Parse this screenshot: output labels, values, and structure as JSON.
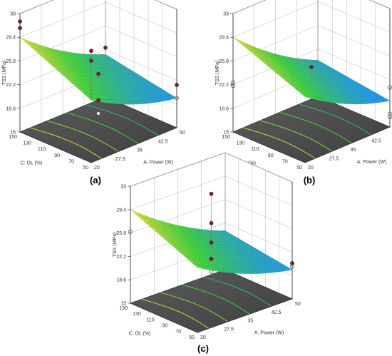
{
  "figure": {
    "panel_labels": [
      "(a)",
      "(b)",
      "(c)"
    ]
  },
  "colors": {
    "surface_low": "#1e90ff",
    "surface_mid": "#3cd43c",
    "surface_high": "#f0e030",
    "contour_floor": "#555555",
    "point_above": "#8b1a1a",
    "point_below": "#f2e6ea",
    "axis": "#333333"
  },
  "chart_data": [
    {
      "type": "surface3d",
      "panel": "(a)",
      "zlabel": "TSS (MPa)",
      "xlabel": "A: Power (W)",
      "ylabel": "C: OL (%)",
      "z_ticks": [
        "15",
        "18.6",
        "22.2",
        "25.8",
        "29.4",
        "33"
      ],
      "x_ticks": [
        "20",
        "27.5",
        "35",
        "42.5",
        "50"
      ],
      "y_ticks": [
        "50",
        "70",
        "90",
        "110",
        "130",
        "150"
      ],
      "zlim": [
        15,
        33
      ],
      "xlim": [
        20,
        50
      ],
      "ylim": [
        50,
        150
      ],
      "surface_corners": {
        "power20_ol150": 29.4,
        "power50_ol150": 21.5,
        "power20_ol50": 24.5,
        "power50_ol50": 19.5
      },
      "design_points": [
        {
          "power": 20,
          "ol": 150,
          "tss": 31.8,
          "position": "above"
        },
        {
          "power": 20,
          "ol": 150,
          "tss": 30.8,
          "position": "above"
        },
        {
          "power": 20,
          "ol": 50,
          "tss": 32.0,
          "position": "above"
        },
        {
          "power": 20,
          "ol": 50,
          "tss": 30.5,
          "position": "above"
        },
        {
          "power": 35,
          "ol": 100,
          "tss": 23.5,
          "position": "above"
        },
        {
          "power": 35,
          "ol": 100,
          "tss": 19.5,
          "position": "above"
        },
        {
          "power": 35,
          "ol": 100,
          "tss": 17.5,
          "position": "below"
        },
        {
          "power": 50,
          "ol": 150,
          "tss": 22.5,
          "position": "above"
        },
        {
          "power": 50,
          "ol": 150,
          "tss": 20.0,
          "position": "below"
        },
        {
          "power": 50,
          "ol": 50,
          "tss": 21.5,
          "position": "above"
        },
        {
          "power": 50,
          "ol": 50,
          "tss": 19.5,
          "position": "below"
        }
      ]
    },
    {
      "type": "surface3d",
      "panel": "(b)",
      "zlabel": "TSS (MPa)",
      "xlabel": "A: Power (W)",
      "ylabel": "C: OL (%)",
      "z_ticks": [
        "15",
        "18.6",
        "22.2",
        "25.8",
        "29.4",
        "33"
      ],
      "x_ticks": [
        "20",
        "27.5",
        "35",
        "42.5",
        "50"
      ],
      "y_ticks": [
        "50",
        "70",
        "90",
        "110",
        "130",
        "150"
      ],
      "zlim": [
        15,
        33
      ],
      "xlim": [
        20,
        50
      ],
      "ylim": [
        50,
        150
      ],
      "surface_corners": {
        "power20_ol150": 29.4,
        "power50_ol150": 20.5,
        "power20_ol50": 25.0,
        "power50_ol50": 19.0
      },
      "design_points": [
        {
          "power": 20,
          "ol": 150,
          "tss": 22.5,
          "position": "below"
        },
        {
          "power": 20,
          "ol": 150,
          "tss": 22.0,
          "position": "below"
        },
        {
          "power": 35,
          "ol": 100,
          "tss": 24.5,
          "position": "above"
        },
        {
          "power": 50,
          "ol": 50,
          "tss": 21.0,
          "position": "below"
        },
        {
          "power": 50,
          "ol": 50,
          "tss": 17.0,
          "position": "below"
        },
        {
          "power": 50,
          "ol": 50,
          "tss": 16.5,
          "position": "below"
        }
      ]
    },
    {
      "type": "surface3d",
      "panel": "(c)",
      "zlabel": "TSS (MPa)",
      "xlabel": "A: Power (W)",
      "ylabel": "C: OL (%)",
      "z_ticks": [
        "15",
        "18.6",
        "22.2",
        "25.8",
        "29.4",
        "33"
      ],
      "x_ticks": [
        "20",
        "27.5",
        "35",
        "42.5",
        "50"
      ],
      "y_ticks": [
        "50",
        "70",
        "90",
        "110",
        "130",
        "150"
      ],
      "zlim": [
        15,
        33
      ],
      "xlim": [
        20,
        50
      ],
      "ylim": [
        50,
        150
      ],
      "surface_corners": {
        "power20_ol150": 29.4,
        "power50_ol150": 21.0,
        "power20_ol50": 25.0,
        "power50_ol50": 19.5
      },
      "design_points": [
        {
          "power": 35,
          "ol": 100,
          "tss": 31.5,
          "position": "above"
        },
        {
          "power": 35,
          "ol": 100,
          "tss": 27.0,
          "position": "above"
        },
        {
          "power": 35,
          "ol": 100,
          "tss": 24.0,
          "position": "above"
        },
        {
          "power": 35,
          "ol": 100,
          "tss": 21.5,
          "position": "above"
        },
        {
          "power": 35,
          "ol": 100,
          "tss": 19.5,
          "position": "below"
        },
        {
          "power": 20,
          "ol": 150,
          "tss": 26.0,
          "position": "below"
        },
        {
          "power": 50,
          "ol": 50,
          "tss": 20.5,
          "position": "above"
        },
        {
          "power": 50,
          "ol": 50,
          "tss": 20.0,
          "position": "below"
        }
      ]
    }
  ]
}
